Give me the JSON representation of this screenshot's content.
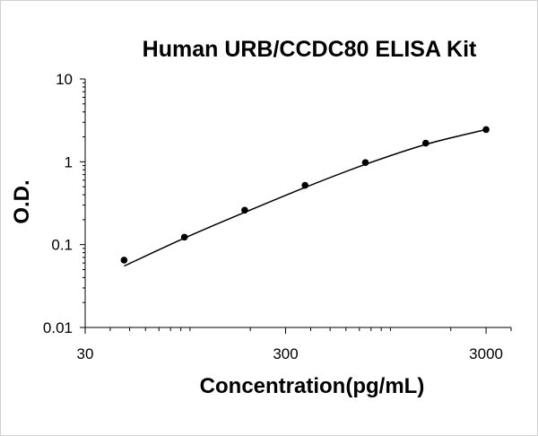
{
  "chart_data": {
    "type": "scatter",
    "title": "Human URB/CCDC80 ELISA Kit",
    "xlabel": "Concentration(pg/mL)",
    "ylabel": "O.D.",
    "x_scale": "log",
    "y_scale": "log",
    "xlim": [
      30,
      4000
    ],
    "ylim": [
      0.01,
      10
    ],
    "x_ticks": [
      "30",
      "300",
      "3000"
    ],
    "y_ticks": [
      "10",
      "1",
      "0.1",
      "0.01"
    ],
    "grid": false,
    "legend": "none",
    "series": [
      {
        "points": [
          {
            "x": 46.9,
            "y": 0.065
          },
          {
            "x": 93.8,
            "y": 0.123
          },
          {
            "x": 187.5,
            "y": 0.26
          },
          {
            "x": 375,
            "y": 0.52
          },
          {
            "x": 750,
            "y": 0.98
          },
          {
            "x": 1500,
            "y": 1.68
          },
          {
            "x": 3000,
            "y": 2.45
          }
        ],
        "fit_curve": [
          {
            "x": 46.9,
            "y": 0.055
          },
          {
            "x": 93.8,
            "y": 0.12
          },
          {
            "x": 187.5,
            "y": 0.245
          },
          {
            "x": 375,
            "y": 0.49
          },
          {
            "x": 750,
            "y": 0.93
          },
          {
            "x": 1500,
            "y": 1.62
          },
          {
            "x": 3000,
            "y": 2.45
          }
        ]
      }
    ],
    "colors": {
      "marker": "#000000",
      "line": "#000000",
      "axis": "#000000"
    }
  }
}
